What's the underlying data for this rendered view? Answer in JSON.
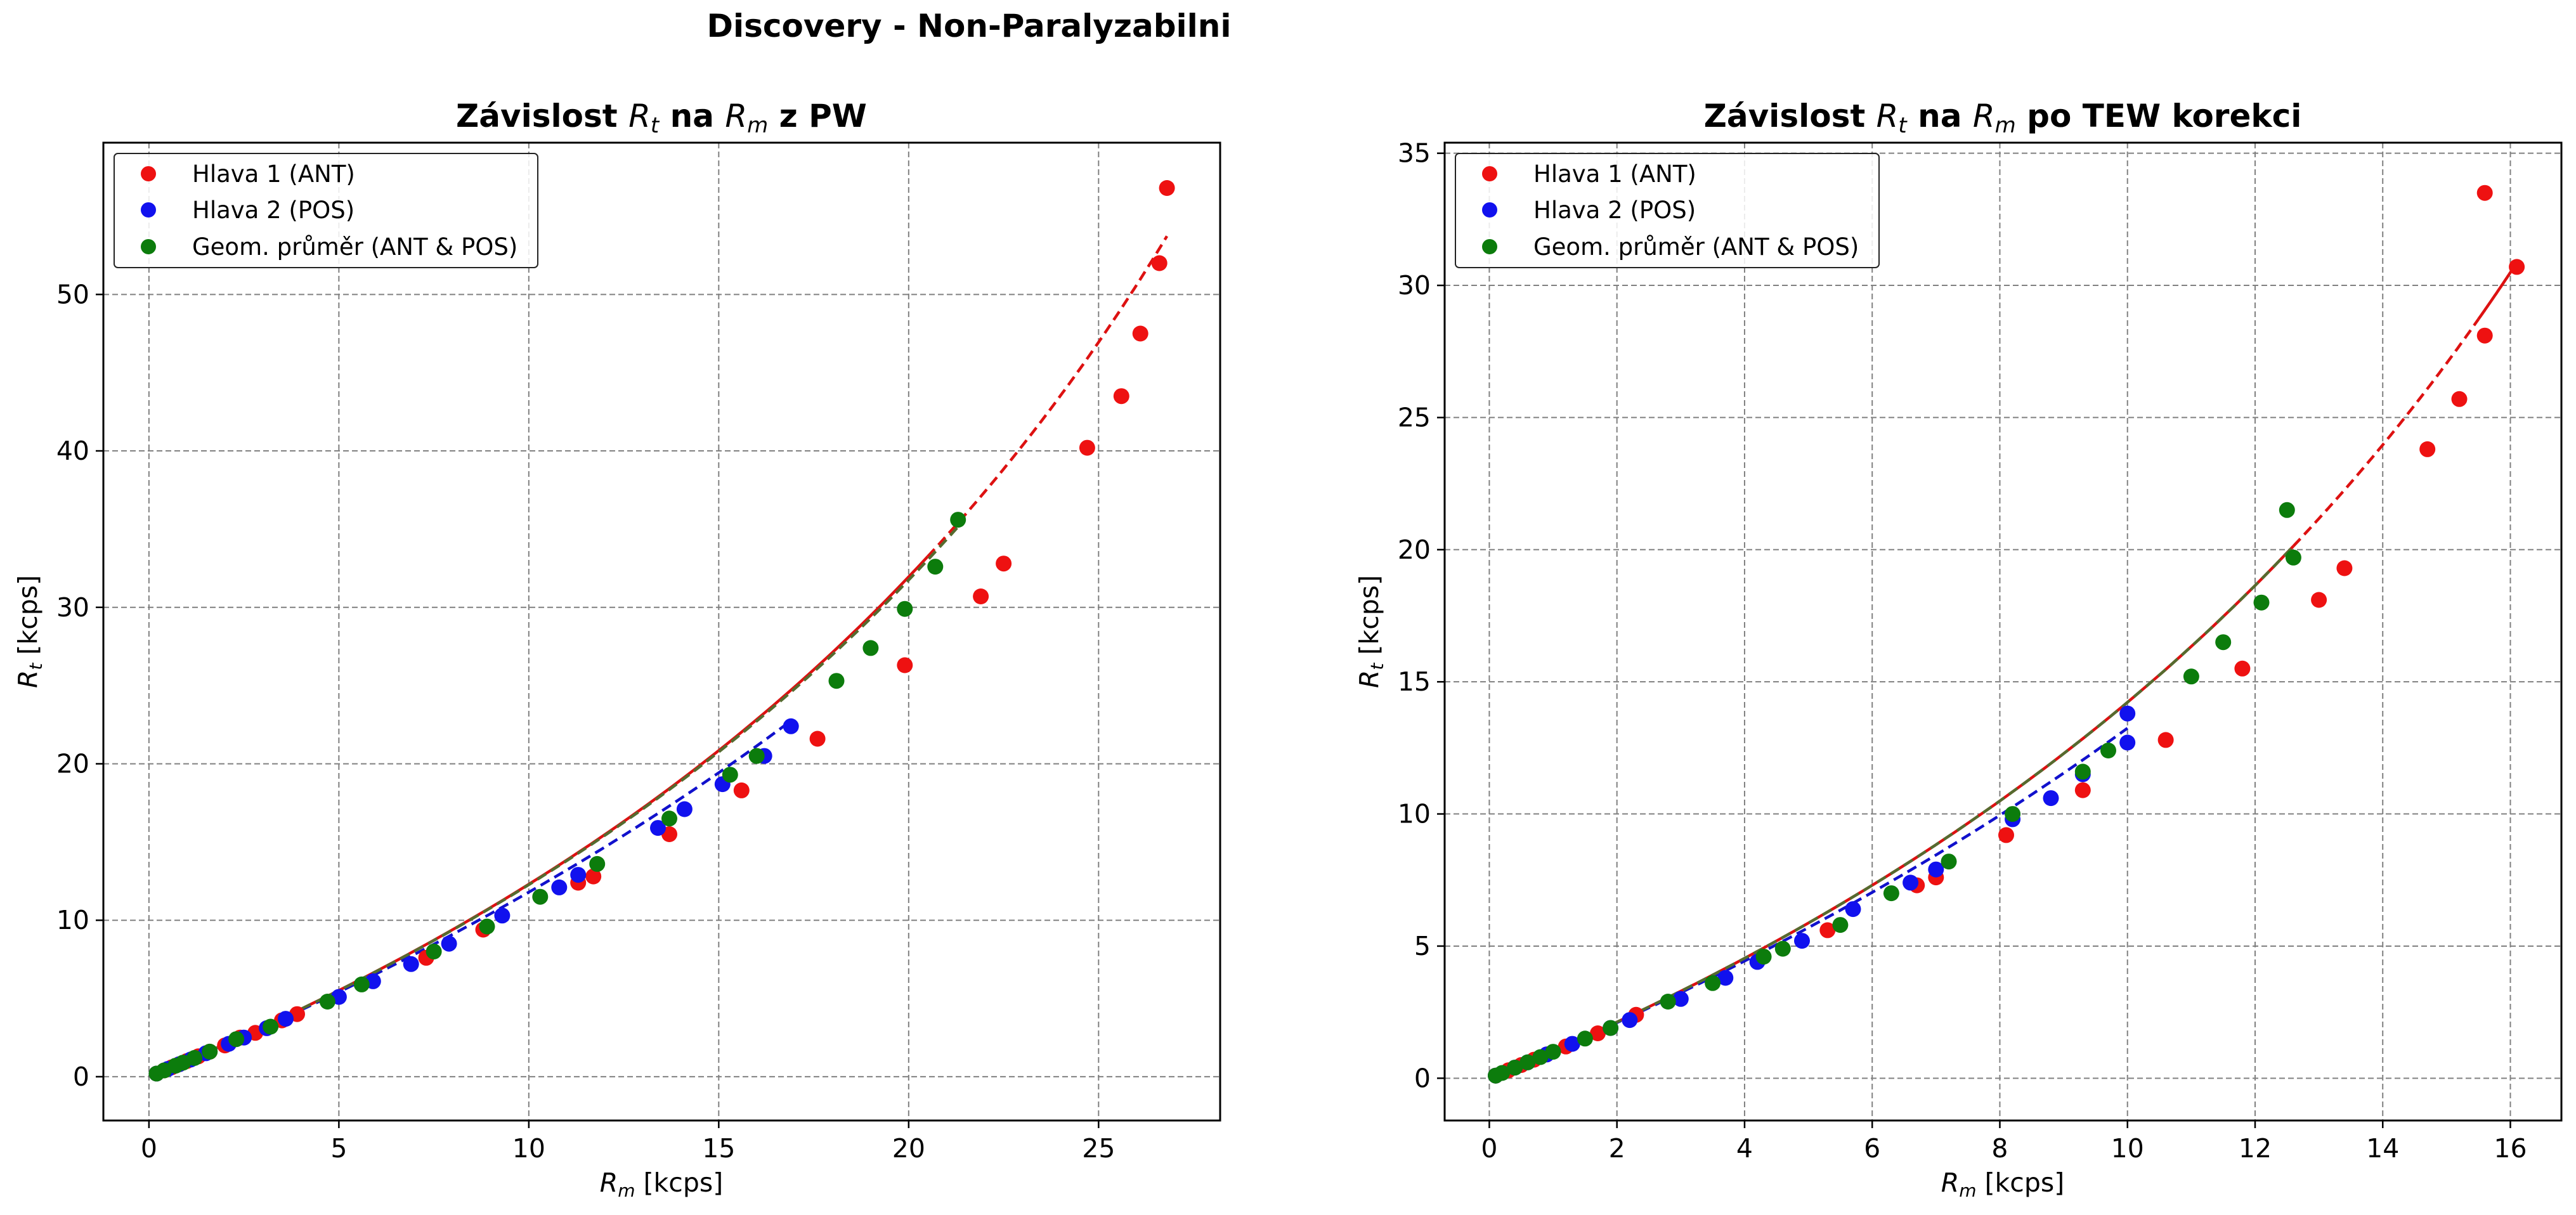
{
  "figure": {
    "suptitle": "Discovery - Non-Paralyzabilni"
  },
  "colors": {
    "head1": "#ee1111",
    "head2": "#1111ee",
    "geom": "#0c7c0c",
    "head1_fit": "#dd1111",
    "head2_fit": "#1111cc",
    "geom_fit": "#556b2f",
    "grid": "#808080"
  },
  "chart_data": [
    {
      "type": "scatter",
      "title": {
        "prefix": "Závislost ",
        "var1": "R",
        "sub1": "t",
        "mid": " na ",
        "var2": "R",
        "sub2": "m",
        "suffix": " z PW"
      },
      "xlabel": {
        "var": "R",
        "sub": "m",
        "unit": " [kcps]"
      },
      "ylabel": {
        "var": "R",
        "sub": "t",
        "unit": " [kcps]"
      },
      "xlim": [
        -1.2,
        28.2
      ],
      "ylim": [
        -2.8,
        59.7
      ],
      "xticks": [
        0,
        5,
        10,
        15,
        20,
        25
      ],
      "yticks": [
        0,
        10,
        20,
        30,
        40,
        50
      ],
      "grid": true,
      "legend_position": "top-left",
      "series": [
        {
          "name": "Hlava 1 (ANT)",
          "color_key": "head1",
          "points": [
            [
              0.2,
              0.2
            ],
            [
              0.4,
              0.4
            ],
            [
              0.6,
              0.6
            ],
            [
              0.8,
              0.8
            ],
            [
              1.0,
              1.0
            ],
            [
              1.3,
              1.3
            ],
            [
              1.6,
              1.6
            ],
            [
              2.0,
              2.0
            ],
            [
              2.4,
              2.5
            ],
            [
              2.8,
              2.8
            ],
            [
              3.5,
              3.6
            ],
            [
              3.9,
              4.0
            ],
            [
              7.3,
              7.6
            ],
            [
              8.8,
              9.4
            ],
            [
              11.3,
              12.4
            ],
            [
              11.7,
              12.8
            ],
            [
              13.7,
              15.5
            ],
            [
              15.6,
              18.3
            ],
            [
              17.6,
              21.6
            ],
            [
              19.9,
              26.3
            ],
            [
              21.9,
              30.7
            ],
            [
              22.5,
              32.8
            ],
            [
              24.7,
              40.2
            ],
            [
              25.6,
              43.5
            ],
            [
              26.1,
              47.5
            ],
            [
              26.6,
              52.0
            ],
            [
              26.8,
              56.8
            ]
          ]
        },
        {
          "name": "Hlava 2 (POS)",
          "color_key": "head2",
          "points": [
            [
              0.2,
              0.2
            ],
            [
              0.5,
              0.5
            ],
            [
              0.8,
              0.8
            ],
            [
              1.1,
              1.1
            ],
            [
              1.5,
              1.5
            ],
            [
              2.1,
              2.1
            ],
            [
              2.5,
              2.5
            ],
            [
              3.1,
              3.1
            ],
            [
              3.6,
              3.7
            ],
            [
              5.0,
              5.1
            ],
            [
              5.9,
              6.1
            ],
            [
              6.9,
              7.2
            ],
            [
              7.9,
              8.5
            ],
            [
              9.3,
              10.3
            ],
            [
              10.8,
              12.1
            ],
            [
              11.3,
              12.9
            ],
            [
              13.4,
              15.9
            ],
            [
              14.1,
              17.1
            ],
            [
              15.1,
              18.7
            ],
            [
              16.2,
              20.5
            ],
            [
              16.9,
              22.4
            ]
          ]
        },
        {
          "name": "Geom. průměr (ANT & POS)",
          "color_key": "geom",
          "points": [
            [
              0.2,
              0.2
            ],
            [
              0.4,
              0.4
            ],
            [
              0.7,
              0.7
            ],
            [
              0.9,
              0.9
            ],
            [
              1.2,
              1.2
            ],
            [
              1.6,
              1.6
            ],
            [
              2.3,
              2.4
            ],
            [
              3.2,
              3.2
            ],
            [
              4.7,
              4.8
            ],
            [
              5.6,
              5.9
            ],
            [
              7.5,
              8.0
            ],
            [
              8.9,
              9.6
            ],
            [
              10.3,
              11.5
            ],
            [
              11.8,
              13.6
            ],
            [
              13.7,
              16.5
            ],
            [
              15.3,
              19.3
            ],
            [
              16.0,
              20.5
            ],
            [
              18.1,
              25.3
            ],
            [
              19.0,
              27.4
            ],
            [
              19.9,
              29.9
            ],
            [
              20.7,
              32.6
            ],
            [
              21.3,
              35.6
            ]
          ]
        }
      ],
      "fits": [
        {
          "color_key": "head1_fit",
          "style": "solid",
          "x_range": [
            0.2,
            20.5
          ],
          "k": 0.0187,
          "overdraw_dashed": true
        },
        {
          "color_key": "head1_fit",
          "style": "dashed",
          "x_range": [
            20.5,
            26.8
          ],
          "k": 0.0187
        },
        {
          "color_key": "head2_fit",
          "style": "dashed",
          "x_range": [
            0.2,
            16.9
          ],
          "k": 0.0152
        },
        {
          "color_key": "geom_fit",
          "style": "dashed",
          "x_range": [
            0.2,
            21.3
          ],
          "k": 0.0185
        }
      ]
    },
    {
      "type": "scatter",
      "title": {
        "prefix": "Závislost ",
        "var1": "R",
        "sub1": "t",
        "mid": " na ",
        "var2": "R",
        "sub2": "m",
        "suffix": " po TEW korekci"
      },
      "xlabel": {
        "var": "R",
        "sub": "m",
        "unit": " [kcps]"
      },
      "ylabel": {
        "var": "R",
        "sub": "t",
        "unit": " [kcps]"
      },
      "xlim": [
        -0.7,
        16.8
      ],
      "ylim": [
        -1.6,
        35.4
      ],
      "xticks": [
        0,
        2,
        4,
        6,
        8,
        10,
        12,
        14,
        16
      ],
      "yticks": [
        0,
        5,
        10,
        15,
        20,
        25,
        30,
        35
      ],
      "grid": true,
      "legend_position": "top-left",
      "series": [
        {
          "name": "Hlava 1 (ANT)",
          "color_key": "head1",
          "points": [
            [
              0.1,
              0.1
            ],
            [
              0.3,
              0.3
            ],
            [
              0.5,
              0.5
            ],
            [
              0.7,
              0.7
            ],
            [
              0.9,
              0.9
            ],
            [
              1.2,
              1.2
            ],
            [
              1.7,
              1.7
            ],
            [
              2.3,
              2.4
            ],
            [
              5.3,
              5.6
            ],
            [
              6.7,
              7.3
            ],
            [
              7.0,
              7.6
            ],
            [
              8.1,
              9.2
            ],
            [
              9.3,
              10.9
            ],
            [
              10.6,
              12.8
            ],
            [
              11.8,
              15.5
            ],
            [
              13.0,
              18.1
            ],
            [
              13.4,
              19.3
            ],
            [
              14.7,
              23.8
            ],
            [
              15.2,
              25.7
            ],
            [
              15.6,
              28.1
            ],
            [
              15.6,
              33.5
            ],
            [
              16.1,
              30.7
            ]
          ]
        },
        {
          "name": "Hlava 2 (POS)",
          "color_key": "head2",
          "points": [
            [
              0.1,
              0.1
            ],
            [
              0.4,
              0.4
            ],
            [
              0.6,
              0.6
            ],
            [
              0.9,
              0.9
            ],
            [
              1.3,
              1.3
            ],
            [
              1.9,
              1.9
            ],
            [
              2.2,
              2.2
            ],
            [
              3.0,
              3.0
            ],
            [
              3.7,
              3.8
            ],
            [
              4.2,
              4.4
            ],
            [
              4.9,
              5.2
            ],
            [
              5.7,
              6.4
            ],
            [
              6.6,
              7.4
            ],
            [
              7.0,
              7.9
            ],
            [
              8.2,
              9.8
            ],
            [
              8.8,
              10.6
            ],
            [
              9.3,
              11.5
            ],
            [
              10.0,
              12.7
            ],
            [
              10.0,
              13.8
            ]
          ]
        },
        {
          "name": "Geom. průměr (ANT & POS)",
          "color_key": "geom",
          "points": [
            [
              0.1,
              0.1
            ],
            [
              0.2,
              0.2
            ],
            [
              0.4,
              0.4
            ],
            [
              0.6,
              0.6
            ],
            [
              0.8,
              0.8
            ],
            [
              1.0,
              1.0
            ],
            [
              1.5,
              1.5
            ],
            [
              1.9,
              1.9
            ],
            [
              2.8,
              2.9
            ],
            [
              3.5,
              3.6
            ],
            [
              4.3,
              4.6
            ],
            [
              4.6,
              4.9
            ],
            [
              5.5,
              5.8
            ],
            [
              6.3,
              7.0
            ],
            [
              7.2,
              8.2
            ],
            [
              8.2,
              10.0
            ],
            [
              9.3,
              11.6
            ],
            [
              9.7,
              12.4
            ],
            [
              11.0,
              15.2
            ],
            [
              11.5,
              16.5
            ],
            [
              12.1,
              18.0
            ],
            [
              12.5,
              21.5
            ],
            [
              12.6,
              19.7
            ]
          ]
        }
      ],
      "fits": [
        {
          "color_key": "head1_fit",
          "style": "solid",
          "x_range": [
            0.1,
            12.6
          ],
          "k": 0.0297,
          "overdraw_dashed": true
        },
        {
          "color_key": "head1_fit",
          "style": "dashed",
          "x_range": [
            12.6,
            15.5
          ],
          "k": 0.0297
        },
        {
          "color_key": "head1_fit",
          "style": "solid",
          "x_range": [
            15.5,
            16.1
          ],
          "k": 0.0297
        },
        {
          "color_key": "head2_fit",
          "style": "dashed",
          "x_range": [
            0.1,
            10.0
          ],
          "k": 0.0245
        },
        {
          "color_key": "geom_fit",
          "style": "dashed",
          "x_range": [
            0.1,
            12.6
          ],
          "k": 0.0297
        }
      ]
    }
  ]
}
